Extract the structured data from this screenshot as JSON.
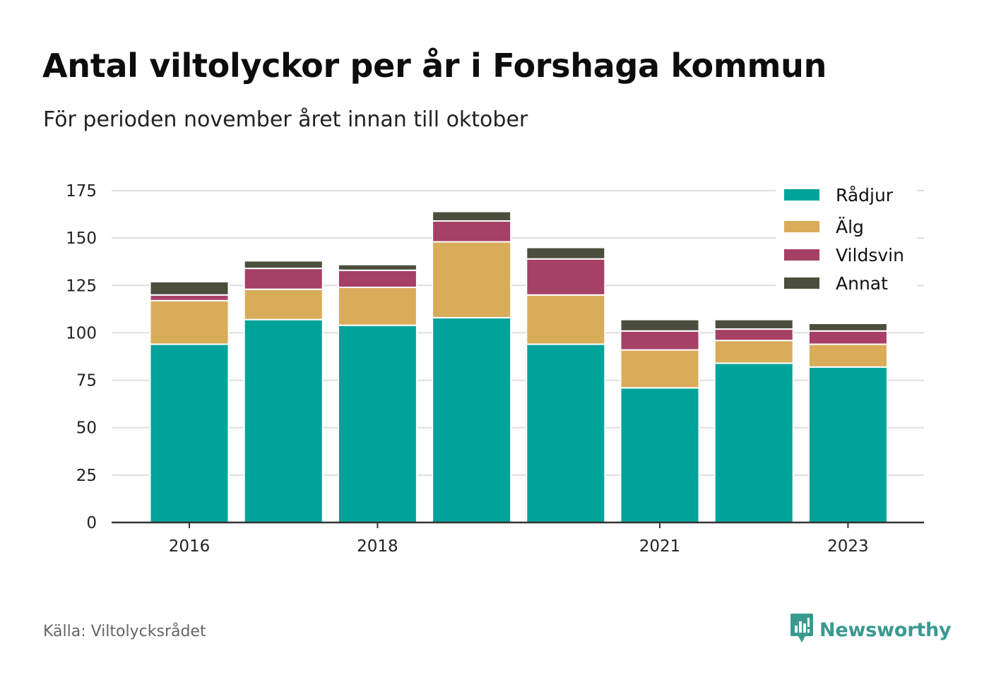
{
  "header": {
    "title": "Antal viltolyckor per år i Forshaga kommun",
    "subtitle": "För perioden november året innan till oktober"
  },
  "footer": {
    "source": "Källa: Viltolycksrådet",
    "brand": "Newsworthy",
    "brand_icon": "bar-chart-speech-bubble-icon"
  },
  "colors": {
    "Rådjur": "#00a39a",
    "Älg": "#d9ac5a",
    "Vildsvin": "#a64065",
    "Annat": "#4b4e3c",
    "grid": "#dddddd",
    "axis": "#333333",
    "brand": "#3a9a90"
  },
  "chart_data": {
    "type": "bar",
    "stacked": true,
    "categories": [
      "2016",
      "2017",
      "2018",
      "2019",
      "2020",
      "2021",
      "2022",
      "2023"
    ],
    "x_tick_labels": [
      "2016",
      "2018",
      "2021",
      "2023"
    ],
    "series": [
      {
        "name": "Rådjur",
        "values": [
          94,
          107,
          104,
          108,
          94,
          71,
          84,
          82
        ]
      },
      {
        "name": "Älg",
        "values": [
          23,
          16,
          20,
          40,
          26,
          20,
          12,
          12
        ]
      },
      {
        "name": "Vildsvin",
        "values": [
          3,
          11,
          9,
          11,
          19,
          10,
          6,
          7
        ]
      },
      {
        "name": "Annat",
        "values": [
          7,
          4,
          3,
          5,
          6,
          6,
          5,
          4
        ]
      }
    ],
    "y_ticks": [
      0,
      25,
      50,
      75,
      100,
      125,
      150,
      175
    ],
    "ylim": [
      0,
      175
    ],
    "grid": true,
    "legend_position": "top-right"
  }
}
